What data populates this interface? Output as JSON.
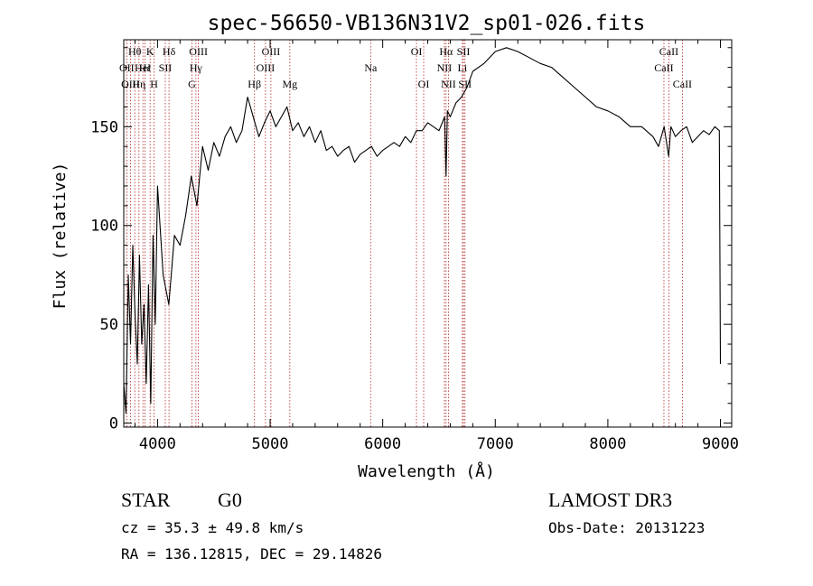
{
  "chart_data": {
    "type": "line",
    "title": "spec-56650-VB136N31V2_sp01-026.fits",
    "xlabel": "Wavelength (Å)",
    "ylabel": "Flux (relative)",
    "xlim": [
      3700,
      9100
    ],
    "ylim": [
      -2,
      194
    ],
    "xticks": [
      4000,
      5000,
      6000,
      7000,
      8000,
      9000
    ],
    "yticks": [
      0,
      50,
      100,
      150
    ],
    "grid": false,
    "series": [
      {
        "name": "spectrum",
        "x": [
          3700,
          3720,
          3740,
          3760,
          3780,
          3800,
          3820,
          3840,
          3860,
          3880,
          3900,
          3920,
          3940,
          3960,
          3980,
          4000,
          4050,
          4100,
          4150,
          4200,
          4250,
          4300,
          4350,
          4400,
          4450,
          4500,
          4550,
          4600,
          4650,
          4700,
          4750,
          4800,
          4850,
          4900,
          4950,
          5000,
          5050,
          5100,
          5150,
          5200,
          5250,
          5300,
          5350,
          5400,
          5450,
          5500,
          5550,
          5600,
          5650,
          5700,
          5750,
          5800,
          5850,
          5900,
          5950,
          6000,
          6050,
          6100,
          6150,
          6200,
          6250,
          6300,
          6350,
          6400,
          6450,
          6500,
          6550,
          6563,
          6575,
          6600,
          6650,
          6700,
          6750,
          6800,
          6900,
          7000,
          7100,
          7200,
          7300,
          7400,
          7500,
          7600,
          7700,
          7800,
          7900,
          8000,
          8100,
          8200,
          8300,
          8400,
          8450,
          8500,
          8540,
          8560,
          8600,
          8650,
          8700,
          8750,
          8800,
          8850,
          8900,
          8950,
          8990,
          9000
        ],
        "values": [
          20,
          5,
          75,
          40,
          90,
          55,
          30,
          85,
          40,
          60,
          20,
          70,
          10,
          95,
          50,
          120,
          75,
          60,
          95,
          90,
          105,
          125,
          110,
          140,
          128,
          142,
          135,
          145,
          150,
          142,
          148,
          165,
          155,
          145,
          152,
          158,
          150,
          155,
          160,
          148,
          152,
          145,
          150,
          142,
          148,
          138,
          140,
          135,
          138,
          140,
          132,
          136,
          138,
          140,
          135,
          138,
          140,
          142,
          140,
          145,
          142,
          148,
          148,
          152,
          150,
          148,
          155,
          125,
          158,
          155,
          162,
          165,
          170,
          178,
          182,
          188,
          190,
          188,
          185,
          182,
          180,
          175,
          170,
          165,
          160,
          158,
          155,
          150,
          150,
          145,
          140,
          150,
          135,
          150,
          145,
          148,
          150,
          142,
          145,
          148,
          146,
          150,
          148,
          30
        ]
      }
    ],
    "lines": [
      {
        "label": "Hθ",
        "x": 3798,
        "row": 0
      },
      {
        "label": "OII",
        "x": 3727,
        "row": 1
      },
      {
        "label": "OIII",
        "x": 3760,
        "row": 2
      },
      {
        "label": "K",
        "x": 3934,
        "row": 0
      },
      {
        "label": "Hε",
        "x": 3889,
        "row": 1
      },
      {
        "label": "Hη",
        "x": 3835,
        "row": 2
      },
      {
        "label": "HeI",
        "x": 3870,
        "row": 1
      },
      {
        "label": "SII",
        "x": 4069,
        "row": 1
      },
      {
        "label": "H",
        "x": 3969,
        "row": 2
      },
      {
        "label": "Hδ",
        "x": 4102,
        "row": 0
      },
      {
        "label": "OIII",
        "x": 4363,
        "row": 0
      },
      {
        "label": "Hγ",
        "x": 4341,
        "row": 1
      },
      {
        "label": "G",
        "x": 4305,
        "row": 2
      },
      {
        "label": "OIII",
        "x": 5007,
        "row": 0
      },
      {
        "label": "OIII",
        "x": 4959,
        "row": 1
      },
      {
        "label": "Hβ",
        "x": 4861,
        "row": 2
      },
      {
        "label": "Mg",
        "x": 5175,
        "row": 2
      },
      {
        "label": "Na",
        "x": 5893,
        "row": 1
      },
      {
        "label": "OI",
        "x": 6300,
        "row": 0
      },
      {
        "label": "OI",
        "x": 6364,
        "row": 2
      },
      {
        "label": "Hα",
        "x": 6563,
        "row": 0
      },
      {
        "label": "SII",
        "x": 6717,
        "row": 0
      },
      {
        "label": "NII",
        "x": 6548,
        "row": 1
      },
      {
        "label": "Li",
        "x": 6708,
        "row": 1
      },
      {
        "label": "NII",
        "x": 6584,
        "row": 2
      },
      {
        "label": "SII",
        "x": 6731,
        "row": 2
      },
      {
        "label": "CaII",
        "x": 8542,
        "row": 0
      },
      {
        "label": "CaII",
        "x": 8498,
        "row": 1
      },
      {
        "label": "CaII",
        "x": 8662,
        "row": 2
      }
    ]
  },
  "info": {
    "class": "STAR",
    "subclass": "G0",
    "survey": "LAMOST DR3",
    "cz": "cz = 35.3 ± 49.8 km/s",
    "obs_date": "Obs-Date: 20131223",
    "coords": "RA = 136.12815, DEC =  29.14826"
  }
}
